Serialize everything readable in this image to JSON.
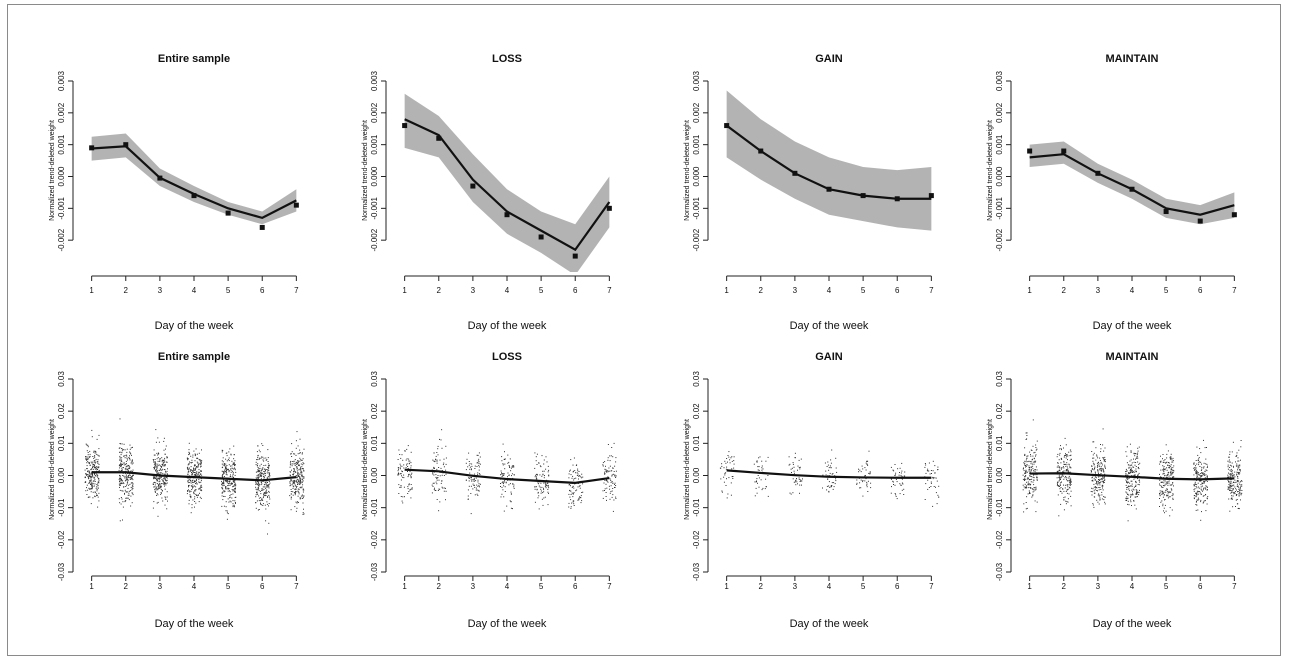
{
  "style": {
    "band_color": "#b3b3b3",
    "line_color": "#111111",
    "point_color": "#111111",
    "scatter_color": "#333333"
  },
  "chart_data": [
    {
      "type": "line",
      "title": "Entire sample",
      "xlabel": "Day of the week",
      "ylabel": "Normalized trend-deleted weight",
      "x": [
        1,
        2,
        3,
        4,
        5,
        6,
        7
      ],
      "xticks": [
        "1",
        "2",
        "3",
        "4",
        "5",
        "6",
        "7"
      ],
      "xlim": [
        0.6,
        7.4
      ],
      "ylim": [
        -0.003,
        0.003
      ],
      "yticks": [
        "-0.002",
        "-0.001",
        "0.000",
        "0.001",
        "0.002",
        "0.003"
      ],
      "ytick_values": [
        -0.002,
        -0.001,
        0,
        0.001,
        0.002,
        0.003
      ],
      "series": [
        {
          "role": "fit",
          "values": [
            0.00088,
            0.00095,
            -4e-05,
            -0.00055,
            -0.001,
            -0.0013,
            -0.00075
          ]
        },
        {
          "role": "band_upper",
          "values": [
            0.00125,
            0.00135,
            0.00025,
            -0.0003,
            -0.0008,
            -0.0011,
            -0.0004
          ]
        },
        {
          "role": "band_lower",
          "values": [
            0.0005,
            0.0006,
            -0.0003,
            -0.0008,
            -0.0012,
            -0.0015,
            -0.0011
          ]
        },
        {
          "role": "points",
          "values": [
            0.0009,
            0.001,
            -5e-05,
            -0.0006,
            -0.00115,
            -0.0016,
            -0.0009
          ]
        }
      ]
    },
    {
      "type": "line",
      "title": "LOSS",
      "xlabel": "Day of the week",
      "ylabel": "Normalized trend-deleted weight",
      "x": [
        1,
        2,
        3,
        4,
        5,
        6,
        7
      ],
      "xticks": [
        "1",
        "2",
        "3",
        "4",
        "5",
        "6",
        "7"
      ],
      "xlim": [
        0.6,
        7.4
      ],
      "ylim": [
        -0.003,
        0.003
      ],
      "yticks": [
        "-0.002",
        "-0.001",
        "0.000",
        "0.001",
        "0.002",
        "0.003"
      ],
      "ytick_values": [
        -0.002,
        -0.001,
        0,
        0.001,
        0.002,
        0.003
      ],
      "series": [
        {
          "role": "fit",
          "values": [
            0.0018,
            0.0013,
            -0.0001,
            -0.0011,
            -0.0017,
            -0.0023,
            -0.0008
          ]
        },
        {
          "role": "band_upper",
          "values": [
            0.0026,
            0.0019,
            0.0007,
            -0.0004,
            -0.0011,
            -0.0015,
            0.0
          ]
        },
        {
          "role": "band_lower",
          "values": [
            0.0009,
            0.0006,
            -0.0008,
            -0.0018,
            -0.0024,
            -0.0031,
            -0.0016
          ]
        },
        {
          "role": "points",
          "values": [
            0.0016,
            0.0012,
            -0.0003,
            -0.0012,
            -0.0019,
            -0.0025,
            -0.001
          ]
        }
      ]
    },
    {
      "type": "line",
      "title": "GAIN",
      "xlabel": "Day of the week",
      "ylabel": "Normalized trend-deleted weight",
      "x": [
        1,
        2,
        3,
        4,
        5,
        6,
        7
      ],
      "xticks": [
        "1",
        "2",
        "3",
        "4",
        "5",
        "6",
        "7"
      ],
      "xlim": [
        0.6,
        7.4
      ],
      "ylim": [
        -0.003,
        0.003
      ],
      "yticks": [
        "-0.002",
        "-0.001",
        "0.000",
        "0.001",
        "0.002",
        "0.003"
      ],
      "ytick_values": [
        -0.002,
        -0.001,
        0,
        0.001,
        0.002,
        0.003
      ],
      "series": [
        {
          "role": "fit",
          "values": [
            0.0016,
            0.0008,
            0.0001,
            -0.0004,
            -0.0006,
            -0.0007,
            -0.0007
          ]
        },
        {
          "role": "band_upper",
          "values": [
            0.0027,
            0.0018,
            0.0011,
            0.0006,
            0.0003,
            0.0002,
            0.0003
          ]
        },
        {
          "role": "band_lower",
          "values": [
            0.0006,
            -0.0001,
            -0.0007,
            -0.0012,
            -0.0014,
            -0.0016,
            -0.0017
          ]
        },
        {
          "role": "points",
          "values": [
            0.0016,
            0.0008,
            0.0001,
            -0.0004,
            -0.0006,
            -0.0007,
            -0.0006
          ]
        }
      ]
    },
    {
      "type": "line",
      "title": "MAINTAIN",
      "xlabel": "Day of the week",
      "ylabel": "Normalized trend-deleted weight",
      "x": [
        1,
        2,
        3,
        4,
        5,
        6,
        7
      ],
      "xticks": [
        "1",
        "2",
        "3",
        "4",
        "5",
        "6",
        "7"
      ],
      "xlim": [
        0.6,
        7.4
      ],
      "ylim": [
        -0.003,
        0.003
      ],
      "yticks": [
        "-0.002",
        "-0.001",
        "0.000",
        "0.001",
        "0.002",
        "0.003"
      ],
      "ytick_values": [
        -0.002,
        -0.001,
        0,
        0.001,
        0.002,
        0.003
      ],
      "series": [
        {
          "role": "fit",
          "values": [
            0.0006,
            0.0007,
            0.0001,
            -0.0004,
            -0.001,
            -0.0012,
            -0.0009
          ]
        },
        {
          "role": "band_upper",
          "values": [
            0.001,
            0.0011,
            0.0004,
            -0.0001,
            -0.0007,
            -0.0009,
            -0.0005
          ]
        },
        {
          "role": "band_lower",
          "values": [
            0.0003,
            0.0004,
            -0.0002,
            -0.0007,
            -0.0013,
            -0.0015,
            -0.0013
          ]
        },
        {
          "role": "points",
          "values": [
            0.0008,
            0.0008,
            0.0001,
            -0.0004,
            -0.0011,
            -0.0014,
            -0.0012
          ]
        }
      ]
    },
    {
      "type": "scatter",
      "title": "Entire sample",
      "xlabel": "Day of the week",
      "ylabel": "Normalized trend-deleted weight",
      "x": [
        1,
        2,
        3,
        4,
        5,
        6,
        7
      ],
      "xticks": [
        "1",
        "2",
        "3",
        "4",
        "5",
        "6",
        "7"
      ],
      "xlim": [
        0.6,
        7.4
      ],
      "ylim": [
        -0.03,
        0.03
      ],
      "yticks": [
        "-0.03",
        "-0.02",
        "-0.01",
        "0.00",
        "0.01",
        "0.02",
        "0.03"
      ],
      "ytick_values": [
        -0.03,
        -0.02,
        -0.01,
        0,
        0.01,
        0.02,
        0.03
      ],
      "series": [
        {
          "role": "fit",
          "values": [
            0.001,
            0.001,
            0.0,
            -0.0005,
            -0.001,
            -0.0015,
            -0.0005
          ]
        }
      ],
      "scatter": {
        "points_per_day": 240,
        "spread": 0.008,
        "range": [
          -0.028,
          0.028
        ]
      }
    },
    {
      "type": "scatter",
      "title": "LOSS",
      "xlabel": "Day of the week",
      "ylabel": "Normalized trend-deleted weight",
      "x": [
        1,
        2,
        3,
        4,
        5,
        6,
        7
      ],
      "xticks": [
        "1",
        "2",
        "3",
        "4",
        "5",
        "6",
        "7"
      ],
      "xlim": [
        0.6,
        7.4
      ],
      "ylim": [
        -0.03,
        0.03
      ],
      "yticks": [
        "-0.03",
        "-0.02",
        "-0.01",
        "0.00",
        "0.01",
        "0.02",
        "0.03"
      ],
      "ytick_values": [
        -0.03,
        -0.02,
        -0.01,
        0,
        0.01,
        0.02,
        0.03
      ],
      "series": [
        {
          "role": "fit",
          "values": [
            0.0018,
            0.0013,
            -0.0001,
            -0.0011,
            -0.0017,
            -0.0023,
            -0.0008
          ]
        }
      ],
      "scatter": {
        "points_per_day": 90,
        "spread": 0.007,
        "range": [
          -0.022,
          0.025
        ]
      }
    },
    {
      "type": "scatter",
      "title": "GAIN",
      "xlabel": "Day of the week",
      "ylabel": "Normalized trend-deleted weight",
      "x": [
        1,
        2,
        3,
        4,
        5,
        6,
        7
      ],
      "xticks": [
        "1",
        "2",
        "3",
        "4",
        "5",
        "6",
        "7"
      ],
      "xlim": [
        0.6,
        7.4
      ],
      "ylim": [
        -0.03,
        0.03
      ],
      "yticks": [
        "-0.03",
        "-0.02",
        "-0.01",
        "0.00",
        "0.01",
        "0.02",
        "0.03"
      ],
      "ytick_values": [
        -0.03,
        -0.02,
        -0.01,
        0,
        0.01,
        0.02,
        0.03
      ],
      "series": [
        {
          "role": "fit",
          "values": [
            0.0016,
            0.0008,
            0.0001,
            -0.0004,
            -0.0006,
            -0.0007,
            -0.0007
          ]
        }
      ],
      "scatter": {
        "points_per_day": 45,
        "spread": 0.006,
        "range": [
          -0.02,
          0.02
        ]
      }
    },
    {
      "type": "scatter",
      "title": "MAINTAIN",
      "xlabel": "Day of the week",
      "ylabel": "Normalized trend-deleted weight",
      "x": [
        1,
        2,
        3,
        4,
        5,
        6,
        7
      ],
      "xticks": [
        "1",
        "2",
        "3",
        "4",
        "5",
        "6",
        "7"
      ],
      "xlim": [
        0.6,
        7.4
      ],
      "ylim": [
        -0.03,
        0.03
      ],
      "yticks": [
        "-0.03",
        "-0.02",
        "-0.01",
        "0.00",
        "0.01",
        "0.02",
        "0.03"
      ],
      "ytick_values": [
        -0.03,
        -0.02,
        -0.01,
        0,
        0.01,
        0.02,
        0.03
      ],
      "series": [
        {
          "role": "fit",
          "values": [
            0.0006,
            0.0007,
            0.0001,
            -0.0004,
            -0.001,
            -0.0012,
            -0.0009
          ]
        }
      ],
      "scatter": {
        "points_per_day": 190,
        "spread": 0.008,
        "range": [
          -0.028,
          0.028
        ]
      }
    }
  ]
}
